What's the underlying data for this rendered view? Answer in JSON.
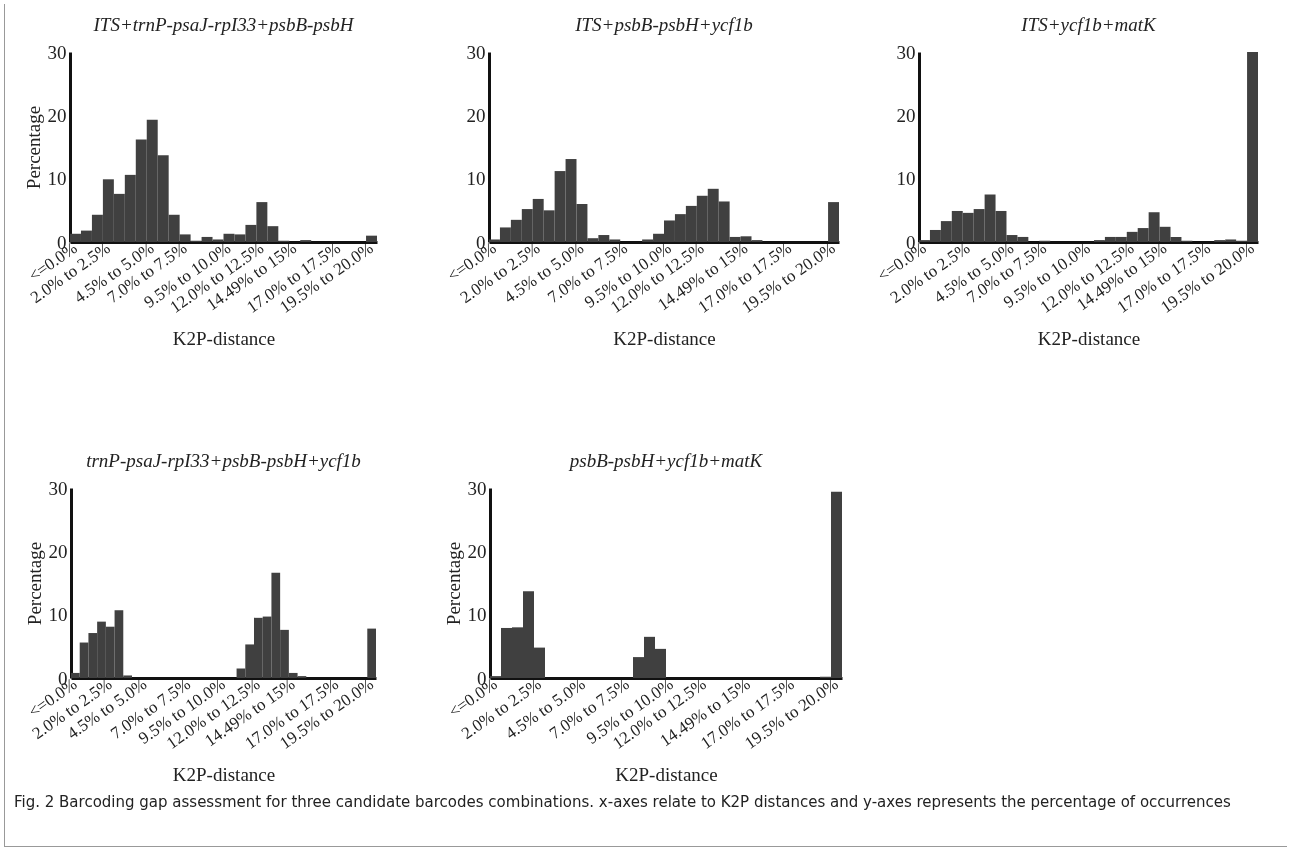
{
  "chart_data": [
    {
      "type": "bar",
      "title": "ITS+trnP-psaJ-rpI33+psbB-psbH",
      "xlabel": "K2P-distance",
      "ylabel": "Percentage",
      "color": "#404040",
      "ylim": [
        0,
        30
      ],
      "yticks": [
        0,
        10,
        20,
        30
      ],
      "categories": [
        "<=0.0%",
        null,
        null,
        "2.0% to 2.5%",
        null,
        null,
        null,
        "4.5% to 5.0%",
        null,
        null,
        "7.0% to 7.5%",
        null,
        null,
        null,
        "9.5% to 10.0%",
        null,
        null,
        "12.0% to 12.5%",
        null,
        null,
        "14.49% to 15%",
        null,
        null,
        null,
        "17.0% to 17.5%",
        null,
        null,
        "19.5% to 20.0%"
      ],
      "values": [
        1.3,
        1.8,
        4.3,
        9.9,
        7.6,
        10.6,
        16.2,
        19.3,
        13.7,
        4.3,
        1.2,
        0.2,
        0.8,
        0.4,
        1.3,
        1.2,
        2.7,
        6.3,
        2.5,
        0.2,
        0,
        0.3,
        0,
        0,
        0,
        0,
        0,
        1.0
      ],
      "annotations": [
        "Fig. 2 Barcoding gap assessment for three candidate barcodes combinations. x-axes relate to K2P distances and y-axes represents the percentage of occurrences"
      ]
    },
    {
      "type": "bar",
      "title": "ITS+psbB-psbH+ycf1b",
      "xlabel": "K2P-distance",
      "color": "#404040",
      "ylim": [
        0,
        30
      ],
      "yticks": [
        0,
        10,
        20,
        30
      ],
      "categories": [
        "<=0.0%",
        null,
        null,
        null,
        "2.0% to 2.5%",
        null,
        null,
        null,
        "4.5% to 5.0%",
        null,
        null,
        null,
        "7.0% to 7.5%",
        null,
        null,
        null,
        "9.5% to 10.0%",
        null,
        null,
        "12.0% to 12.5%",
        null,
        null,
        null,
        "14.49% to 15%",
        null,
        null,
        null,
        "17.0% to 17.5%",
        null,
        null,
        null,
        "19.5% to 20.0%"
      ],
      "values": [
        0.4,
        2.3,
        3.5,
        5.2,
        6.8,
        5.0,
        11.2,
        13.1,
        6.0,
        0.6,
        1.1,
        0.4,
        0,
        0,
        0.4,
        1.3,
        3.4,
        4.4,
        5.7,
        7.3,
        8.4,
        6.4,
        0.8,
        0.9,
        0.3,
        0,
        0,
        0,
        0,
        0,
        0,
        6.3
      ]
    },
    {
      "type": "bar",
      "title": "ITS+ycf1b+matK",
      "xlabel": "K2P-distance",
      "color": "#404040",
      "ylim": [
        0,
        30
      ],
      "yticks": [
        0,
        10,
        20,
        30
      ],
      "categories": [
        "<=0.0%",
        null,
        null,
        null,
        "2.0% to 2.5%",
        null,
        null,
        null,
        "4.5% to 5.0%",
        null,
        null,
        "7.0% to 7.5%",
        null,
        null,
        null,
        "9.5% to 10.0%",
        null,
        null,
        null,
        "12.0% to 12.5%",
        null,
        null,
        "14.49% to 15%",
        null,
        null,
        null,
        "17.0% to 17.5%",
        null,
        null,
        null,
        "19.5% to 20.0%"
      ],
      "values": [
        0.3,
        1.9,
        3.3,
        4.9,
        4.6,
        5.2,
        7.5,
        4.9,
        1.1,
        0.8,
        0,
        0.2,
        0,
        0,
        0,
        0,
        0.3,
        0.8,
        0.8,
        1.6,
        2.2,
        4.7,
        2.4,
        0.8,
        0.2,
        0,
        0,
        0.3,
        0.4,
        0.2,
        30
      ]
    },
    {
      "type": "bar",
      "title": "trnP-psaJ-rpI33+psbB-psbH+ycf1b",
      "xlabel": "K2P-distance",
      "ylabel": "Percentage",
      "color": "#404040",
      "ylim": [
        0,
        30
      ],
      "yticks": [
        0,
        10,
        20,
        30
      ],
      "categories": [
        "<=0.0%",
        null,
        null,
        null,
        "2.0% to 2.5%",
        null,
        null,
        null,
        "4.5% to 5.0%",
        null,
        null,
        null,
        null,
        "7.0% to 7.5%",
        null,
        null,
        null,
        "9.5% to 10.0%",
        null,
        null,
        null,
        "12.0% to 12.5%",
        null,
        null,
        null,
        "14.49% to 15%",
        null,
        null,
        null,
        null,
        "17.0% to 17.5%",
        null,
        null,
        null,
        "19.5% to 20.0%"
      ],
      "values": [
        0.8,
        5.6,
        7.1,
        8.9,
        8.1,
        10.7,
        0.4,
        0,
        0,
        0,
        0,
        0,
        0,
        0,
        0,
        0,
        0,
        0,
        0,
        1.5,
        5.3,
        9.5,
        9.7,
        16.6,
        7.6,
        0.8,
        0.3,
        0,
        0,
        0,
        0,
        0,
        0,
        0,
        7.8
      ]
    },
    {
      "type": "bar",
      "title": "psbB-psbH+ycf1b+matK",
      "xlabel": "K2P-distance",
      "ylabel": "Percentage",
      "color": "#404040",
      "ylim": [
        0,
        30
      ],
      "yticks": [
        0,
        10,
        20,
        30
      ],
      "categories": [
        "<=0.0%",
        null,
        null,
        null,
        "2.0% to 2.5%",
        null,
        null,
        null,
        "4.5% to 5.0%",
        null,
        null,
        null,
        "7.0% to 7.5%",
        null,
        null,
        null,
        "9.5% to 10.0%",
        null,
        null,
        "12.0% to 12.5%",
        null,
        null,
        null,
        "14.49% to 15%",
        null,
        null,
        null,
        "17.0% to 17.5%",
        null,
        null,
        null,
        "19.5% to 20.0%"
      ],
      "values": [
        0.3,
        7.9,
        8.0,
        13.7,
        4.8,
        0,
        0,
        0,
        0,
        0,
        0,
        0,
        0,
        3.3,
        6.5,
        4.6,
        0,
        0,
        0,
        0,
        0,
        0,
        0,
        0,
        0,
        0,
        0,
        0,
        0,
        0,
        0.2,
        29.4
      ]
    }
  ]
}
